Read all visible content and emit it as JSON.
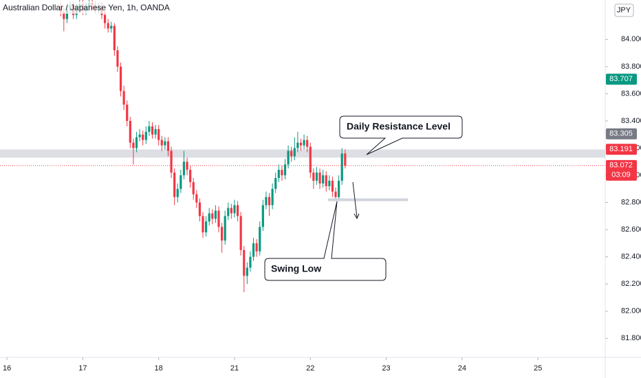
{
  "chart_data": {
    "type": "candlestick",
    "title": "Australian Dollar / Japanese Yen, 1h, OANDA",
    "currency": "JPY",
    "up_color": "#089981",
    "down_color": "#f23645",
    "x": [
      17,
      18,
      19,
      20,
      21,
      22,
      23,
      24,
      25,
      26,
      27,
      28,
      29,
      30,
      31,
      32,
      33,
      34,
      35,
      36,
      37,
      38,
      39,
      40,
      41,
      42,
      43,
      44,
      45,
      46,
      47,
      48,
      49,
      50,
      51,
      52,
      53,
      54,
      55,
      56,
      57,
      58,
      59,
      60,
      61,
      62,
      63,
      64,
      65,
      66,
      67,
      68,
      69,
      70,
      71,
      72,
      73,
      74,
      75,
      76,
      77,
      78,
      79,
      80,
      81,
      82,
      83,
      84,
      85,
      86,
      87,
      88,
      89,
      90,
      91,
      92,
      93,
      94,
      95,
      96,
      97,
      98,
      99,
      100,
      101,
      102,
      103,
      104,
      105,
      106,
      107
    ],
    "open": [
      84.24,
      84.2,
      84.15,
      84.22,
      84.25,
      84.18,
      84.23,
      84.26,
      84.21,
      84.24,
      84.27,
      84.25,
      84.22,
      84.24,
      84.18,
      84.12,
      84.08,
      84.1,
      83.92,
      83.8,
      83.62,
      83.52,
      83.4,
      83.24,
      83.2,
      83.28,
      83.3,
      83.26,
      83.32,
      83.36,
      83.3,
      83.34,
      83.26,
      83.22,
      83.25,
      83.18,
      83.02,
      82.84,
      82.9,
      83.0,
      83.1,
      83.04,
      82.95,
      82.86,
      82.8,
      82.7,
      82.58,
      82.66,
      82.72,
      82.68,
      82.74,
      82.62,
      82.52,
      82.7,
      82.76,
      82.72,
      82.78,
      82.7,
      82.45,
      82.26,
      82.32,
      82.4,
      82.5,
      82.44,
      82.62,
      82.78,
      82.84,
      82.78,
      82.9,
      82.98,
      83.04,
      83.0,
      83.08,
      83.18,
      83.14,
      83.2,
      83.24,
      83.22,
      83.26,
      83.21,
      83.02,
      82.96,
      83.02,
      82.94,
      83.0,
      82.92,
      82.96,
      82.88,
      82.84,
      82.96,
      83.16
    ],
    "high": [
      84.27,
      84.23,
      84.25,
      84.28,
      84.28,
      84.26,
      84.29,
      84.29,
      84.27,
      84.29,
      84.29,
      84.28,
      84.27,
      84.27,
      84.21,
      84.15,
      84.13,
      84.12,
      83.95,
      83.83,
      83.66,
      83.55,
      83.43,
      83.27,
      83.32,
      83.34,
      83.33,
      83.36,
      83.4,
      83.39,
      83.37,
      83.37,
      83.29,
      83.28,
      83.28,
      83.21,
      83.05,
      82.94,
      83.04,
      83.18,
      83.13,
      83.07,
      82.98,
      82.89,
      82.83,
      82.73,
      82.7,
      82.76,
      82.75,
      82.78,
      82.77,
      82.65,
      82.74,
      82.8,
      82.79,
      82.82,
      82.81,
      82.73,
      82.48,
      82.36,
      82.44,
      82.54,
      82.53,
      82.66,
      82.82,
      82.88,
      82.87,
      82.94,
      83.02,
      83.08,
      83.07,
      83.12,
      83.22,
      83.21,
      83.28,
      83.32,
      83.27,
      83.3,
      83.29,
      83.24,
      83.05,
      83.06,
      83.05,
      83.04,
      83.03,
      83.0,
      82.99,
      82.91,
      83.0,
      83.2,
      83.19
    ],
    "low": [
      84.17,
      84.06,
      84.12,
      84.19,
      84.15,
      84.15,
      84.2,
      84.18,
      84.18,
      84.21,
      84.22,
      84.19,
      84.19,
      84.15,
      84.08,
      84.05,
      84.05,
      83.88,
      83.76,
      83.58,
      83.48,
      83.36,
      83.2,
      83.08,
      83.17,
      83.25,
      83.22,
      83.23,
      83.29,
      83.27,
      83.27,
      83.22,
      83.18,
      83.19,
      83.14,
      82.98,
      82.78,
      82.8,
      82.87,
      82.97,
      83.0,
      82.91,
      82.82,
      82.76,
      82.66,
      82.54,
      82.55,
      82.63,
      82.64,
      82.65,
      82.58,
      82.43,
      82.49,
      82.67,
      82.68,
      82.69,
      82.66,
      82.41,
      82.14,
      82.2,
      82.29,
      82.37,
      82.4,
      82.41,
      82.59,
      82.75,
      82.7,
      82.75,
      82.87,
      82.95,
      82.96,
      82.97,
      83.05,
      83.1,
      83.11,
      83.17,
      83.18,
      83.19,
      83.17,
      82.98,
      82.9,
      82.93,
      82.9,
      82.91,
      82.88,
      82.89,
      82.84,
      82.81,
      82.81,
      82.93,
      83.05
    ],
    "close": [
      84.2,
      84.15,
      84.22,
      84.25,
      84.18,
      84.23,
      84.26,
      84.21,
      84.24,
      84.27,
      84.25,
      84.22,
      84.24,
      84.18,
      84.12,
      84.08,
      84.1,
      83.92,
      83.8,
      83.62,
      83.52,
      83.4,
      83.24,
      83.2,
      83.28,
      83.3,
      83.26,
      83.32,
      83.36,
      83.3,
      83.34,
      83.26,
      83.22,
      83.25,
      83.18,
      83.02,
      82.84,
      82.9,
      83.0,
      83.1,
      83.04,
      82.95,
      82.86,
      82.8,
      82.7,
      82.58,
      82.66,
      82.72,
      82.68,
      82.74,
      82.62,
      82.52,
      82.7,
      82.76,
      82.72,
      82.78,
      82.7,
      82.45,
      82.26,
      82.32,
      82.4,
      82.5,
      82.44,
      82.62,
      82.78,
      82.84,
      82.78,
      82.9,
      82.98,
      83.04,
      83.0,
      83.08,
      83.18,
      83.14,
      83.2,
      83.24,
      83.22,
      83.26,
      83.21,
      83.02,
      82.96,
      83.02,
      82.94,
      83.0,
      82.92,
      82.96,
      82.88,
      82.84,
      82.96,
      83.16,
      83.07
    ],
    "xlim": [
      -2.2,
      189.3
    ],
    "ylim": [
      81.66,
      84.29
    ],
    "xticks": [
      {
        "value": 0,
        "label": "16"
      },
      {
        "value": 24,
        "label": "17"
      },
      {
        "value": 48,
        "label": "18"
      },
      {
        "value": 72,
        "label": "21"
      },
      {
        "value": 96,
        "label": "22"
      },
      {
        "value": 120,
        "label": "23"
      },
      {
        "value": 144,
        "label": "24"
      },
      {
        "value": 168,
        "label": "25"
      }
    ],
    "yticks": [
      {
        "value": 84,
        "label": "84.000"
      },
      {
        "value": 83.8,
        "label": "83.800"
      },
      {
        "value": 83.6,
        "label": "83.600"
      },
      {
        "value": 83.4,
        "label": "83.400"
      },
      {
        "value": 83.2,
        "label": "83.200"
      },
      {
        "value": 83,
        "label": "83.000"
      },
      {
        "value": 82.8,
        "label": "82.800"
      },
      {
        "value": 82.6,
        "label": "82.600"
      },
      {
        "value": 82.4,
        "label": "82.400"
      },
      {
        "value": 82.2,
        "label": "82.200"
      },
      {
        "value": 82,
        "label": "82.000"
      },
      {
        "value": 81.8,
        "label": "81.800"
      }
    ],
    "resistance_zone": [
      83.13,
      83.19
    ],
    "swing_low": 82.82,
    "markers": [
      {
        "value": 83.707,
        "color": "#089981"
      },
      {
        "value": 83.305,
        "color": "#787b86"
      },
      {
        "value": 83.191,
        "color": "#f23645"
      },
      {
        "value": 83.072,
        "color": "#f23645"
      }
    ],
    "countdown": "03:09",
    "annotations": [
      "Daily Resistance Level",
      "Swing Low"
    ]
  }
}
